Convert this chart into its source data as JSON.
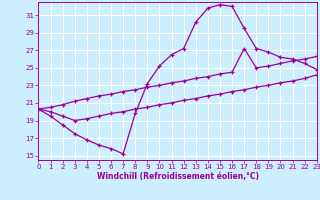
{
  "xlabel": "Windchill (Refroidissement éolien,°C)",
  "bg_color": "#cceeff",
  "grid_color": "#ffffff",
  "line_color": "#990099",
  "xlim": [
    0,
    23
  ],
  "ylim": [
    14.5,
    32.5
  ],
  "yticks": [
    15,
    17,
    19,
    21,
    23,
    25,
    27,
    29,
    31
  ],
  "xticks": [
    0,
    1,
    2,
    3,
    4,
    5,
    6,
    7,
    8,
    9,
    10,
    11,
    12,
    13,
    14,
    15,
    16,
    17,
    18,
    19,
    20,
    21,
    22,
    23
  ],
  "main_x": [
    0,
    1,
    2,
    3,
    4,
    5,
    6,
    7,
    8,
    9,
    10,
    11,
    12,
    13,
    14,
    15,
    16,
    17,
    18,
    19,
    20,
    21,
    22,
    23
  ],
  "main_y": [
    20.3,
    19.5,
    18.5,
    17.5,
    16.8,
    16.2,
    15.8,
    15.2,
    19.8,
    23.2,
    25.2,
    26.5,
    27.2,
    30.2,
    31.8,
    32.2,
    32.0,
    29.5,
    27.2,
    26.8,
    26.2,
    26.0,
    25.5,
    24.8
  ],
  "upper_x": [
    0,
    1,
    2,
    3,
    4,
    5,
    6,
    7,
    8,
    9,
    10,
    11,
    12,
    13,
    14,
    15,
    16,
    17,
    18,
    19,
    20,
    21,
    22,
    23
  ],
  "upper_y": [
    20.3,
    20.5,
    20.8,
    21.2,
    21.5,
    21.8,
    22.0,
    22.3,
    22.5,
    22.8,
    23.0,
    23.3,
    23.5,
    23.8,
    24.0,
    24.3,
    24.5,
    27.2,
    25.0,
    25.2,
    25.5,
    25.8,
    26.0,
    26.3
  ],
  "lower_x": [
    0,
    1,
    2,
    3,
    4,
    5,
    6,
    7,
    8,
    9,
    10,
    11,
    12,
    13,
    14,
    15,
    16,
    17,
    18,
    19,
    20,
    21,
    22,
    23
  ],
  "lower_y": [
    20.3,
    20.0,
    19.5,
    19.0,
    19.2,
    19.5,
    19.8,
    20.0,
    20.3,
    20.5,
    20.8,
    21.0,
    21.3,
    21.5,
    21.8,
    22.0,
    22.3,
    22.5,
    22.8,
    23.0,
    23.3,
    23.5,
    23.8,
    24.2
  ]
}
